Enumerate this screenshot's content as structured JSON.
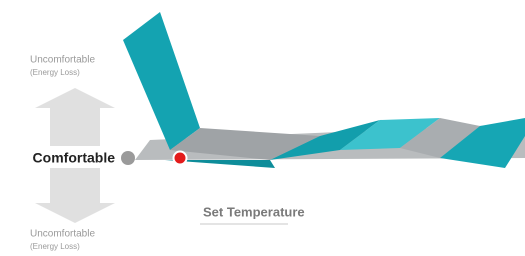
{
  "labels": {
    "top": {
      "title": "Uncomfortable",
      "note": "(Energy Loss)"
    },
    "middle": "Comfortable",
    "marker": "Set Temperature",
    "bottom": {
      "title": "Uncomfortable",
      "note": "(Energy Loss)"
    }
  }
}
